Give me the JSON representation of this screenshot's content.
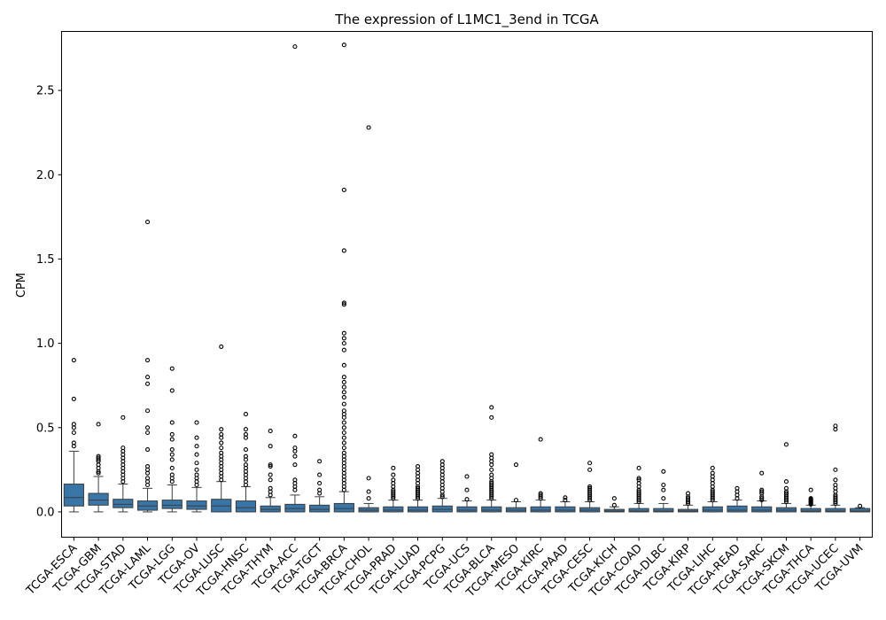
{
  "chart_data": {
    "type": "box",
    "title": "The expression of L1MC1_3end in TCGA",
    "xlabel": "",
    "ylabel": "CPM",
    "ylim": [
      -0.15,
      2.85
    ],
    "yticks": [
      0.0,
      0.5,
      1.0,
      1.5,
      2.0,
      2.5
    ],
    "ytick_labels": [
      "0.0",
      "0.5",
      "1.0",
      "1.5",
      "2.0",
      "2.5"
    ],
    "grid": false,
    "box_color": "#3a75a8",
    "categories": [
      "TCGA-ESCA",
      "TCGA-GBM",
      "TCGA-STAD",
      "TCGA-LAML",
      "TCGA-LGG",
      "TCGA-OV",
      "TCGA-LUSC",
      "TCGA-HNSC",
      "TCGA-THYM",
      "TCGA-ACC",
      "TCGA-TGCT",
      "TCGA-BRCA",
      "TCGA-CHOL",
      "TCGA-PRAD",
      "TCGA-LUAD",
      "TCGA-PCPG",
      "TCGA-UCS",
      "TCGA-BLCA",
      "TCGA-MESO",
      "TCGA-KIRC",
      "TCGA-PAAD",
      "TCGA-CESC",
      "TCGA-KICH",
      "TCGA-COAD",
      "TCGA-DLBC",
      "TCGA-KIRP",
      "TCGA-LIHC",
      "TCGA-READ",
      "TCGA-SARC",
      "TCGA-SKCM",
      "TCGA-THCA",
      "TCGA-UCEC",
      "TCGA-UVM"
    ],
    "boxes": [
      {
        "whislo": 0.0,
        "q1": 0.035,
        "med": 0.085,
        "q3": 0.165,
        "whishi": 0.36,
        "fliers": [
          0.39,
          0.41,
          0.47,
          0.5,
          0.52,
          0.67,
          0.9
        ]
      },
      {
        "whislo": 0.0,
        "q1": 0.04,
        "med": 0.07,
        "q3": 0.11,
        "whishi": 0.21,
        "fliers": [
          0.23,
          0.24,
          0.26,
          0.28,
          0.3,
          0.31,
          0.32,
          0.33,
          0.52
        ]
      },
      {
        "whislo": 0.0,
        "q1": 0.025,
        "med": 0.045,
        "q3": 0.075,
        "whishi": 0.165,
        "fliers": [
          0.18,
          0.2,
          0.22,
          0.24,
          0.26,
          0.28,
          0.3,
          0.32,
          0.34,
          0.36,
          0.38,
          0.56
        ]
      },
      {
        "whislo": 0.0,
        "q1": 0.01,
        "med": 0.035,
        "q3": 0.065,
        "whishi": 0.14,
        "fliers": [
          0.16,
          0.18,
          0.2,
          0.23,
          0.25,
          0.27,
          0.37,
          0.47,
          0.5,
          0.6,
          0.76,
          0.8,
          0.9,
          1.72
        ]
      },
      {
        "whislo": 0.0,
        "q1": 0.02,
        "med": 0.04,
        "q3": 0.07,
        "whishi": 0.16,
        "fliers": [
          0.18,
          0.2,
          0.22,
          0.26,
          0.31,
          0.34,
          0.37,
          0.43,
          0.46,
          0.53,
          0.72,
          0.85
        ]
      },
      {
        "whislo": 0.0,
        "q1": 0.015,
        "med": 0.035,
        "q3": 0.065,
        "whishi": 0.145,
        "fliers": [
          0.16,
          0.18,
          0.2,
          0.22,
          0.25,
          0.29,
          0.34,
          0.39,
          0.44,
          0.53
        ]
      },
      {
        "whislo": 0.0,
        "q1": 0.0,
        "med": 0.035,
        "q3": 0.075,
        "whishi": 0.18,
        "fliers": [
          0.19,
          0.21,
          0.23,
          0.25,
          0.27,
          0.29,
          0.31,
          0.33,
          0.35,
          0.38,
          0.41,
          0.44,
          0.46,
          0.49,
          0.98
        ]
      },
      {
        "whislo": 0.0,
        "q1": 0.0,
        "med": 0.025,
        "q3": 0.065,
        "whishi": 0.15,
        "fliers": [
          0.16,
          0.18,
          0.2,
          0.22,
          0.24,
          0.26,
          0.28,
          0.31,
          0.33,
          0.37,
          0.44,
          0.46,
          0.49,
          0.58
        ]
      },
      {
        "whislo": 0.0,
        "q1": 0.0,
        "med": 0.015,
        "q3": 0.035,
        "whishi": 0.085,
        "fliers": [
          0.1,
          0.12,
          0.14,
          0.19,
          0.22,
          0.27,
          0.28,
          0.39,
          0.48
        ]
      },
      {
        "whislo": 0.0,
        "q1": 0.0,
        "med": 0.02,
        "q3": 0.045,
        "whishi": 0.1,
        "fliers": [
          0.13,
          0.15,
          0.17,
          0.19,
          0.28,
          0.33,
          0.36,
          0.38,
          0.45,
          2.76
        ]
      },
      {
        "whislo": 0.0,
        "q1": 0.0,
        "med": 0.015,
        "q3": 0.04,
        "whishi": 0.09,
        "fliers": [
          0.11,
          0.13,
          0.17,
          0.22,
          0.3
        ]
      },
      {
        "whislo": 0.0,
        "q1": 0.0,
        "med": 0.02,
        "q3": 0.05,
        "whishi": 0.12,
        "fliers": [
          0.13,
          0.15,
          0.17,
          0.19,
          0.21,
          0.23,
          0.25,
          0.27,
          0.29,
          0.31,
          0.33,
          0.35,
          0.38,
          0.41,
          0.44,
          0.47,
          0.5,
          0.53,
          0.56,
          0.58,
          0.6,
          0.64,
          0.68,
          0.71,
          0.74,
          0.77,
          0.8,
          0.87,
          0.96,
          1.0,
          1.03,
          1.06,
          1.23,
          1.24,
          1.55,
          1.91,
          2.77
        ]
      },
      {
        "whislo": 0.0,
        "q1": 0.0,
        "med": 0.01,
        "q3": 0.025,
        "whishi": 0.05,
        "fliers": [
          0.08,
          0.12,
          0.2,
          2.28
        ]
      },
      {
        "whislo": 0.0,
        "q1": 0.0,
        "med": 0.01,
        "q3": 0.03,
        "whishi": 0.07,
        "fliers": [
          0.08,
          0.09,
          0.1,
          0.11,
          0.12,
          0.13,
          0.15,
          0.17,
          0.19,
          0.22,
          0.26
        ]
      },
      {
        "whislo": 0.0,
        "q1": 0.0,
        "med": 0.01,
        "q3": 0.03,
        "whishi": 0.07,
        "fliers": [
          0.08,
          0.09,
          0.1,
          0.11,
          0.12,
          0.13,
          0.14,
          0.15,
          0.17,
          0.19,
          0.21,
          0.23,
          0.25,
          0.27
        ]
      },
      {
        "whislo": 0.0,
        "q1": 0.0,
        "med": 0.015,
        "q3": 0.035,
        "whishi": 0.08,
        "fliers": [
          0.09,
          0.1,
          0.12,
          0.14,
          0.16,
          0.18,
          0.2,
          0.22,
          0.24,
          0.26,
          0.28,
          0.3
        ]
      },
      {
        "whislo": 0.0,
        "q1": 0.0,
        "med": 0.01,
        "q3": 0.03,
        "whishi": 0.065,
        "fliers": [
          0.075,
          0.13,
          0.21
        ]
      },
      {
        "whislo": 0.0,
        "q1": 0.0,
        "med": 0.01,
        "q3": 0.03,
        "whishi": 0.07,
        "fliers": [
          0.08,
          0.09,
          0.1,
          0.11,
          0.12,
          0.13,
          0.14,
          0.15,
          0.16,
          0.17,
          0.18,
          0.2,
          0.22,
          0.25,
          0.28,
          0.3,
          0.32,
          0.34,
          0.56,
          0.62
        ]
      },
      {
        "whislo": 0.0,
        "q1": 0.0,
        "med": 0.01,
        "q3": 0.025,
        "whishi": 0.06,
        "fliers": [
          0.07,
          0.28
        ]
      },
      {
        "whislo": 0.0,
        "q1": 0.0,
        "med": 0.01,
        "q3": 0.03,
        "whishi": 0.07,
        "fliers": [
          0.08,
          0.09,
          0.1,
          0.11,
          0.43
        ]
      },
      {
        "whislo": 0.0,
        "q1": 0.0,
        "med": 0.01,
        "q3": 0.03,
        "whishi": 0.06,
        "fliers": [
          0.07,
          0.085
        ]
      },
      {
        "whislo": 0.0,
        "q1": 0.0,
        "med": 0.01,
        "q3": 0.025,
        "whishi": 0.06,
        "fliers": [
          0.07,
          0.08,
          0.09,
          0.1,
          0.11,
          0.12,
          0.13,
          0.14,
          0.15,
          0.25,
          0.29
        ]
      },
      {
        "whislo": 0.0,
        "q1": 0.0,
        "med": 0.005,
        "q3": 0.015,
        "whishi": 0.03,
        "fliers": [
          0.04,
          0.08
        ]
      },
      {
        "whislo": 0.0,
        "q1": 0.0,
        "med": 0.005,
        "q3": 0.02,
        "whishi": 0.05,
        "fliers": [
          0.06,
          0.07,
          0.08,
          0.09,
          0.1,
          0.11,
          0.12,
          0.13,
          0.15,
          0.17,
          0.19,
          0.2,
          0.26
        ]
      },
      {
        "whislo": 0.0,
        "q1": 0.0,
        "med": 0.005,
        "q3": 0.02,
        "whishi": 0.05,
        "fliers": [
          0.08,
          0.13,
          0.16,
          0.24
        ]
      },
      {
        "whislo": 0.0,
        "q1": 0.0,
        "med": 0.005,
        "q3": 0.015,
        "whishi": 0.04,
        "fliers": [
          0.05,
          0.06,
          0.07,
          0.08,
          0.09,
          0.11
        ]
      },
      {
        "whislo": 0.0,
        "q1": 0.0,
        "med": 0.01,
        "q3": 0.03,
        "whishi": 0.06,
        "fliers": [
          0.07,
          0.08,
          0.09,
          0.1,
          0.11,
          0.12,
          0.13,
          0.15,
          0.17,
          0.19,
          0.21,
          0.23,
          0.26
        ]
      },
      {
        "whislo": 0.0,
        "q1": 0.0,
        "med": 0.01,
        "q3": 0.035,
        "whishi": 0.07,
        "fliers": [
          0.08,
          0.1,
          0.12,
          0.14
        ]
      },
      {
        "whislo": 0.0,
        "q1": 0.0,
        "med": 0.01,
        "q3": 0.03,
        "whishi": 0.065,
        "fliers": [
          0.07,
          0.08,
          0.09,
          0.11,
          0.12,
          0.13,
          0.23
        ]
      },
      {
        "whislo": 0.0,
        "q1": 0.0,
        "med": 0.01,
        "q3": 0.025,
        "whishi": 0.05,
        "fliers": [
          0.06,
          0.07,
          0.08,
          0.09,
          0.1,
          0.11,
          0.12,
          0.14,
          0.18,
          0.4
        ]
      },
      {
        "whislo": 0.0,
        "q1": 0.0,
        "med": 0.005,
        "q3": 0.02,
        "whishi": 0.04,
        "fliers": [
          0.045,
          0.05,
          0.055,
          0.06,
          0.065,
          0.07,
          0.075,
          0.08,
          0.13
        ]
      },
      {
        "whislo": 0.0,
        "q1": 0.0,
        "med": 0.005,
        "q3": 0.02,
        "whishi": 0.04,
        "fliers": [
          0.05,
          0.06,
          0.07,
          0.08,
          0.09,
          0.1,
          0.12,
          0.14,
          0.16,
          0.19,
          0.25,
          0.49,
          0.51
        ]
      },
      {
        "whislo": 0.0,
        "q1": 0.0,
        "med": 0.005,
        "q3": 0.02,
        "whishi": 0.025,
        "fliers": [
          0.035
        ]
      }
    ]
  }
}
